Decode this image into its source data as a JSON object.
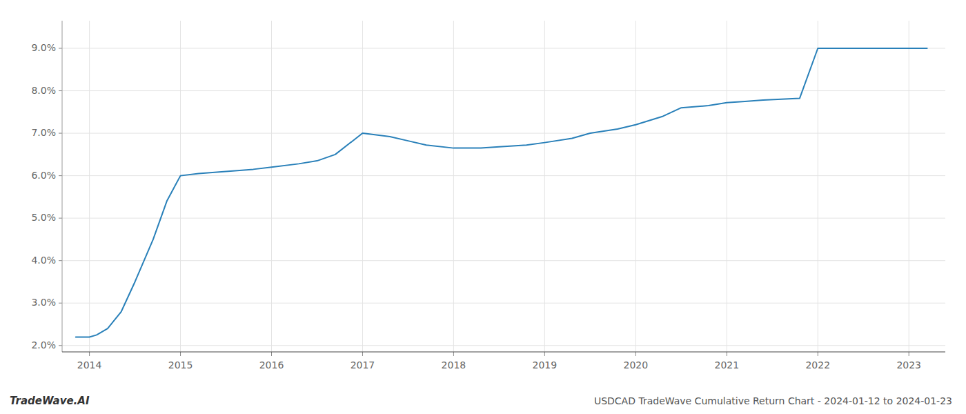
{
  "chart_data": {
    "type": "line",
    "title": "USDCAD TradeWave Cumulative Return Chart - 2024-01-12 to 2024-01-23",
    "annotations": [
      "TradeWave.AI"
    ],
    "x": [
      2013.85,
      2014.0,
      2014.08,
      2014.2,
      2014.35,
      2014.5,
      2014.7,
      2014.85,
      2015.0,
      2015.2,
      2015.5,
      2015.8,
      2016.0,
      2016.3,
      2016.5,
      2016.7,
      2017.0,
      2017.3,
      2017.5,
      2017.7,
      2018.0,
      2018.3,
      2018.5,
      2018.8,
      2019.0,
      2019.3,
      2019.5,
      2019.8,
      2020.0,
      2020.3,
      2020.5,
      2020.8,
      2021.0,
      2021.2,
      2021.4,
      2021.6,
      2021.8,
      2022.0,
      2022.2,
      2022.5,
      2022.8,
      2023.0,
      2023.2
    ],
    "values": [
      2.2,
      2.2,
      2.25,
      2.4,
      2.8,
      3.5,
      4.5,
      5.4,
      6.0,
      6.05,
      6.1,
      6.15,
      6.2,
      6.28,
      6.35,
      6.5,
      7.0,
      6.92,
      6.82,
      6.72,
      6.65,
      6.65,
      6.68,
      6.72,
      6.78,
      6.88,
      7.0,
      7.1,
      7.2,
      7.4,
      7.6,
      7.65,
      7.72,
      7.75,
      7.78,
      7.8,
      7.82,
      9.0,
      9.0,
      9.0,
      9.0,
      9.0,
      9.0
    ],
    "color": "#2980b9",
    "xlim": [
      2013.7,
      2023.4
    ],
    "ylim": [
      1.85,
      9.65
    ],
    "xticks": [
      2014,
      2015,
      2016,
      2017,
      2018,
      2019,
      2020,
      2021,
      2022,
      2023
    ],
    "yticks": [
      {
        "value": 2.0,
        "label": "2.0%"
      },
      {
        "value": 3.0,
        "label": "3.0%"
      },
      {
        "value": 4.0,
        "label": "4.0%"
      },
      {
        "value": 5.0,
        "label": "5.0%"
      },
      {
        "value": 6.0,
        "label": "6.0%"
      },
      {
        "value": 7.0,
        "label": "7.0%"
      },
      {
        "value": 8.0,
        "label": "8.0%"
      },
      {
        "value": 9.0,
        "label": "9.0%"
      }
    ],
    "grid": true
  }
}
